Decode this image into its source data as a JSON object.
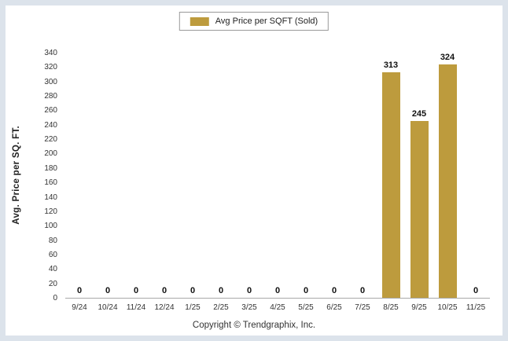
{
  "legend": {
    "label": "Avg Price per SQFT (Sold)"
  },
  "footer": {
    "copyright": "Copyright © Trendgraphix, Inc."
  },
  "colors": {
    "bar": "#BD9B3D",
    "frame": "#DCE3EB",
    "axis": "#A9A9A9"
  },
  "chart_data": {
    "type": "bar",
    "title": "",
    "series_label": "Avg Price per SQFT (Sold)",
    "categories": [
      "9/24",
      "10/24",
      "11/24",
      "12/24",
      "1/25",
      "2/25",
      "3/25",
      "4/25",
      "5/25",
      "6/25",
      "7/25",
      "8/25",
      "9/25",
      "10/25",
      "11/25"
    ],
    "values": [
      0,
      0,
      0,
      0,
      0,
      0,
      0,
      0,
      0,
      0,
      0,
      313,
      245,
      324,
      0
    ],
    "xlabel": "",
    "ylabel": "Avg. Price per SQ. FT.",
    "ylim": [
      0,
      340
    ],
    "ytick_step": 20,
    "grid": false,
    "legend_position": "top-center",
    "data_labels": true
  }
}
